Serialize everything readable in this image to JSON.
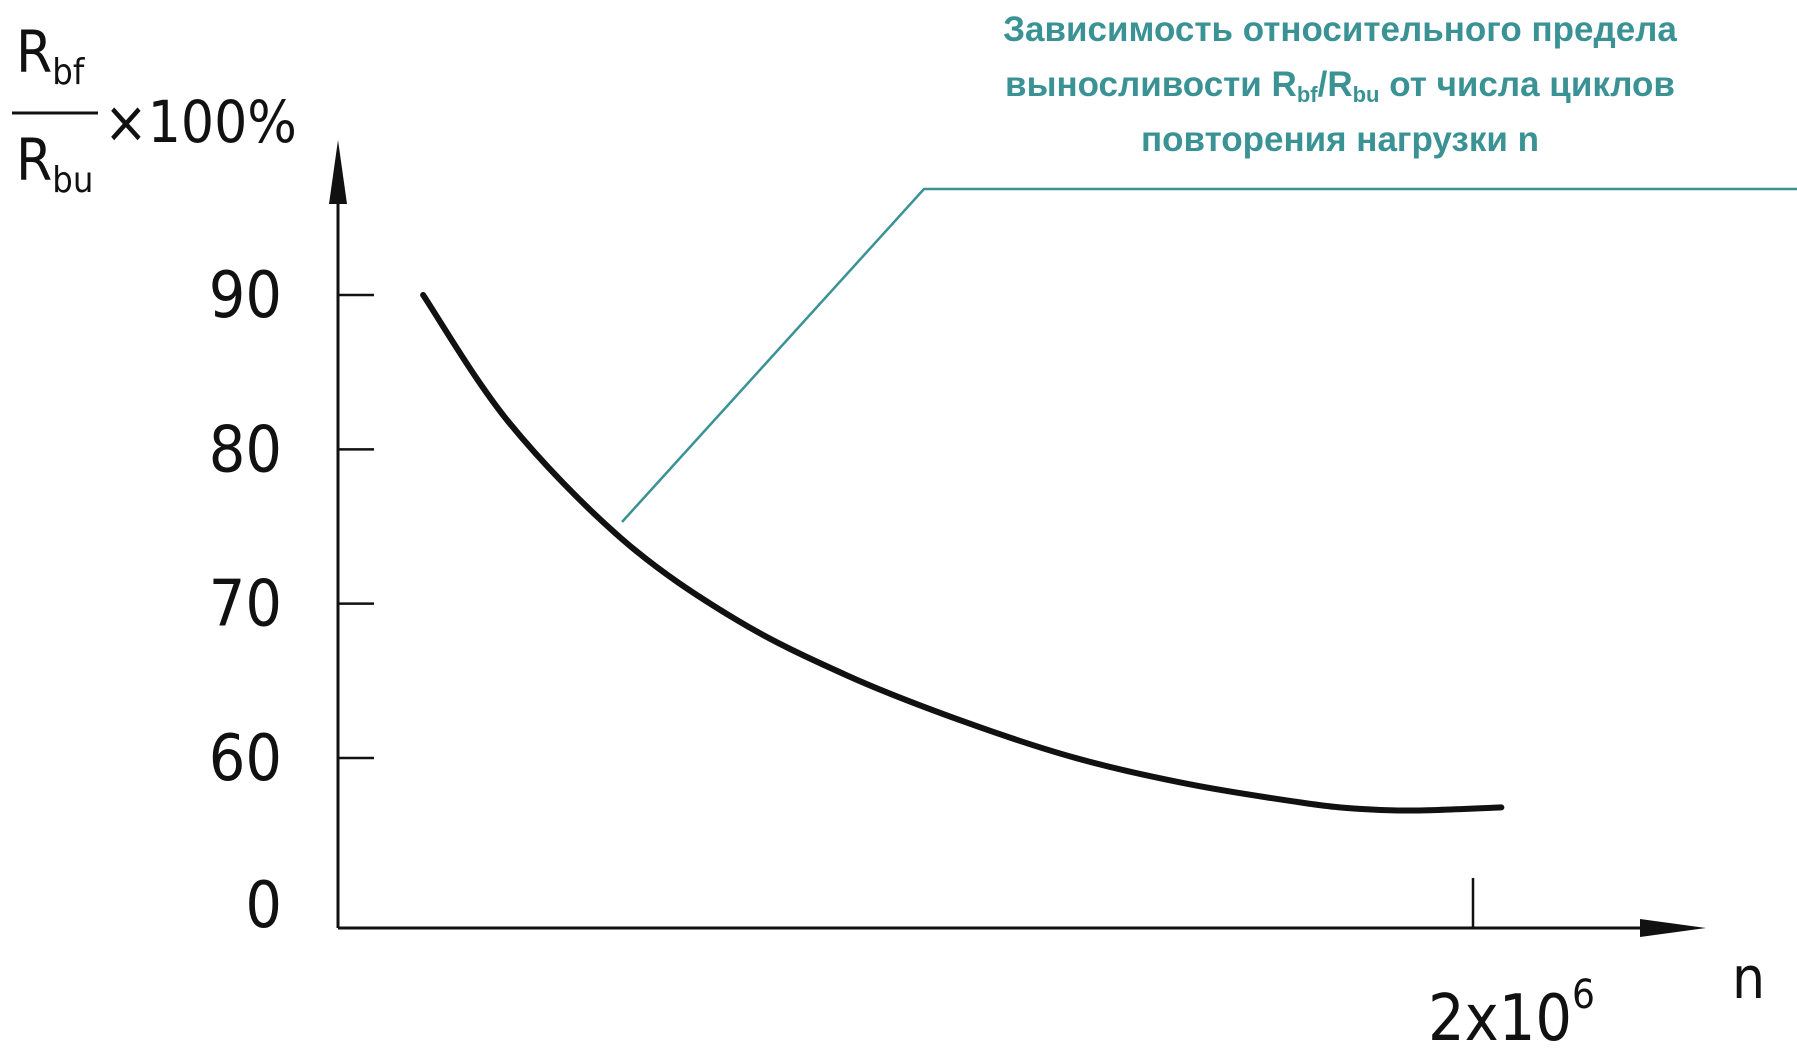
{
  "chart_data": {
    "type": "line",
    "title_parts": {
      "line1": "Зависимость относительного предела",
      "line2_before": "выносливости R",
      "sub1": "bf",
      "slash": "/R",
      "sub2": "bu",
      "line2_after": " от числа циклов",
      "line3": "повторения нагрузки n"
    },
    "ylabel": {
      "num_base": "R",
      "num_sub": "bf",
      "den_base": "R",
      "den_sub": "bu",
      "suffix": "×100%"
    },
    "xlabel": "n",
    "y_ticks": [
      {
        "value": 0,
        "label": "0"
      },
      {
        "value": 60,
        "label": "60"
      },
      {
        "value": 70,
        "label": "70"
      },
      {
        "value": 80,
        "label": "80"
      },
      {
        "value": 90,
        "label": "90"
      }
    ],
    "x_ticks": [
      {
        "value": 2000000,
        "label_base": "2x10",
        "label_exp": "6"
      }
    ],
    "x_range": [
      0,
      2100000
    ],
    "y_range_note": "broken axis: 0 then 60–90",
    "series": [
      {
        "points": [
          {
            "x": 150000,
            "y": 90.0
          },
          {
            "x": 300000,
            "y": 81.8
          },
          {
            "x": 500000,
            "y": 74.2
          },
          {
            "x": 700000,
            "y": 69.0
          },
          {
            "x": 900000,
            "y": 65.3
          },
          {
            "x": 1100000,
            "y": 62.4
          },
          {
            "x": 1300000,
            "y": 60.0
          },
          {
            "x": 1500000,
            "y": 58.3
          },
          {
            "x": 1700000,
            "y": 57.1
          },
          {
            "x": 1800000,
            "y": 56.7
          },
          {
            "x": 1900000,
            "y": 56.6
          },
          {
            "x": 2050000,
            "y": 56.8
          }
        ]
      }
    ],
    "annotation_color": "#3a9295"
  }
}
